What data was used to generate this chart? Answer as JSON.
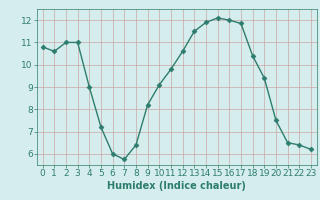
{
  "x": [
    0,
    1,
    2,
    3,
    4,
    5,
    6,
    7,
    8,
    9,
    10,
    11,
    12,
    13,
    14,
    15,
    16,
    17,
    18,
    19,
    20,
    21,
    22,
    23
  ],
  "y": [
    10.8,
    10.6,
    11.0,
    11.0,
    9.0,
    7.2,
    6.0,
    5.75,
    6.4,
    8.2,
    9.1,
    9.8,
    10.6,
    11.5,
    11.9,
    12.1,
    12.0,
    11.85,
    10.4,
    9.4,
    7.5,
    6.5,
    6.4,
    6.2
  ],
  "line_color": "#2d7d6e",
  "marker": "D",
  "marker_size": 2.5,
  "line_width": 1.0,
  "bg_color": "#d6eded",
  "grid_color": "#c8a8a8",
  "xlabel": "Humidex (Indice chaleur)",
  "xlabel_fontsize": 7,
  "xlabel_color": "#2d7d6e",
  "tick_color": "#2d7d6e",
  "tick_fontsize": 6.5,
  "ylim": [
    5.5,
    12.5
  ],
  "yticks": [
    6,
    7,
    8,
    9,
    10,
    11,
    12
  ],
  "xlim": [
    -0.5,
    23.5
  ],
  "xticks": [
    0,
    1,
    2,
    3,
    4,
    5,
    6,
    7,
    8,
    9,
    10,
    11,
    12,
    13,
    14,
    15,
    16,
    17,
    18,
    19,
    20,
    21,
    22,
    23
  ]
}
